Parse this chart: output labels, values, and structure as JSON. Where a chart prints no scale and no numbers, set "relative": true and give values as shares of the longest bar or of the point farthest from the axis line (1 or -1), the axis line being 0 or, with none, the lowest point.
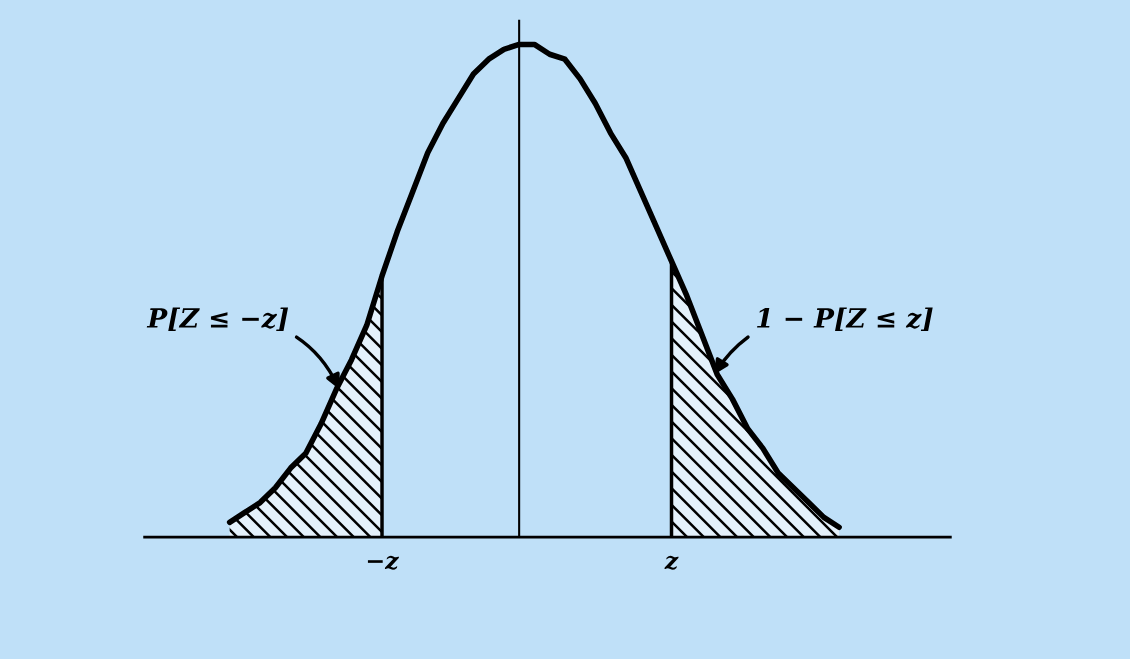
{
  "chart_data": {
    "type": "line",
    "relative": true,
    "categories": [
      null,
      null,
      null,
      null,
      null,
      null,
      null,
      null,
      null,
      null,
      "−z",
      null,
      null,
      null,
      null,
      null,
      null,
      null,
      null,
      null,
      null,
      null,
      null,
      null,
      null,
      null,
      null,
      null,
      null,
      "z",
      null,
      null,
      null,
      null,
      null,
      null,
      null,
      null,
      null,
      null,
      null
    ],
    "series": [
      {
        "type": "area",
        "color": "#000000",
        "values": [
          0.03,
          0.05,
          0.07,
          0.1,
          0.14,
          0.17,
          0.23,
          0.3,
          0.36,
          0.43,
          0.53,
          null,
          null,
          null,
          null,
          null,
          null,
          null,
          null,
          null,
          null,
          null,
          null,
          null,
          null,
          null,
          null,
          null,
          null,
          null,
          null,
          null,
          null,
          null,
          null,
          null,
          null,
          null,
          null,
          null,
          null
        ]
      },
      {
        "type": "area",
        "color": "#000000",
        "values": [
          null,
          null,
          null,
          null,
          null,
          null,
          null,
          null,
          null,
          null,
          null,
          null,
          null,
          null,
          null,
          null,
          null,
          null,
          null,
          null,
          null,
          null,
          null,
          null,
          null,
          null,
          null,
          null,
          null,
          0.56,
          0.49,
          0.41,
          0.33,
          0.28,
          0.22,
          0.18,
          0.13,
          0.1,
          0.07,
          0.04,
          0.02
        ]
      },
      {
        "color": "#000000",
        "values": [
          0.03,
          0.05,
          0.07,
          0.1,
          0.14,
          0.17,
          0.23,
          0.3,
          0.36,
          0.43,
          0.53,
          0.62,
          0.7,
          0.78,
          0.84,
          0.89,
          0.94,
          0.97,
          0.99,
          1.0,
          1.0,
          0.98,
          0.97,
          0.93,
          0.88,
          0.82,
          0.77,
          0.7,
          0.63,
          0.56,
          0.49,
          0.41,
          0.33,
          0.28,
          0.22,
          0.18,
          0.13,
          0.1,
          0.07,
          0.04,
          0.02
        ]
      }
    ],
    "annotations": [
      "P[Z ≤ −z]",
      "1 − P[Z ≤ z]"
    ]
  }
}
